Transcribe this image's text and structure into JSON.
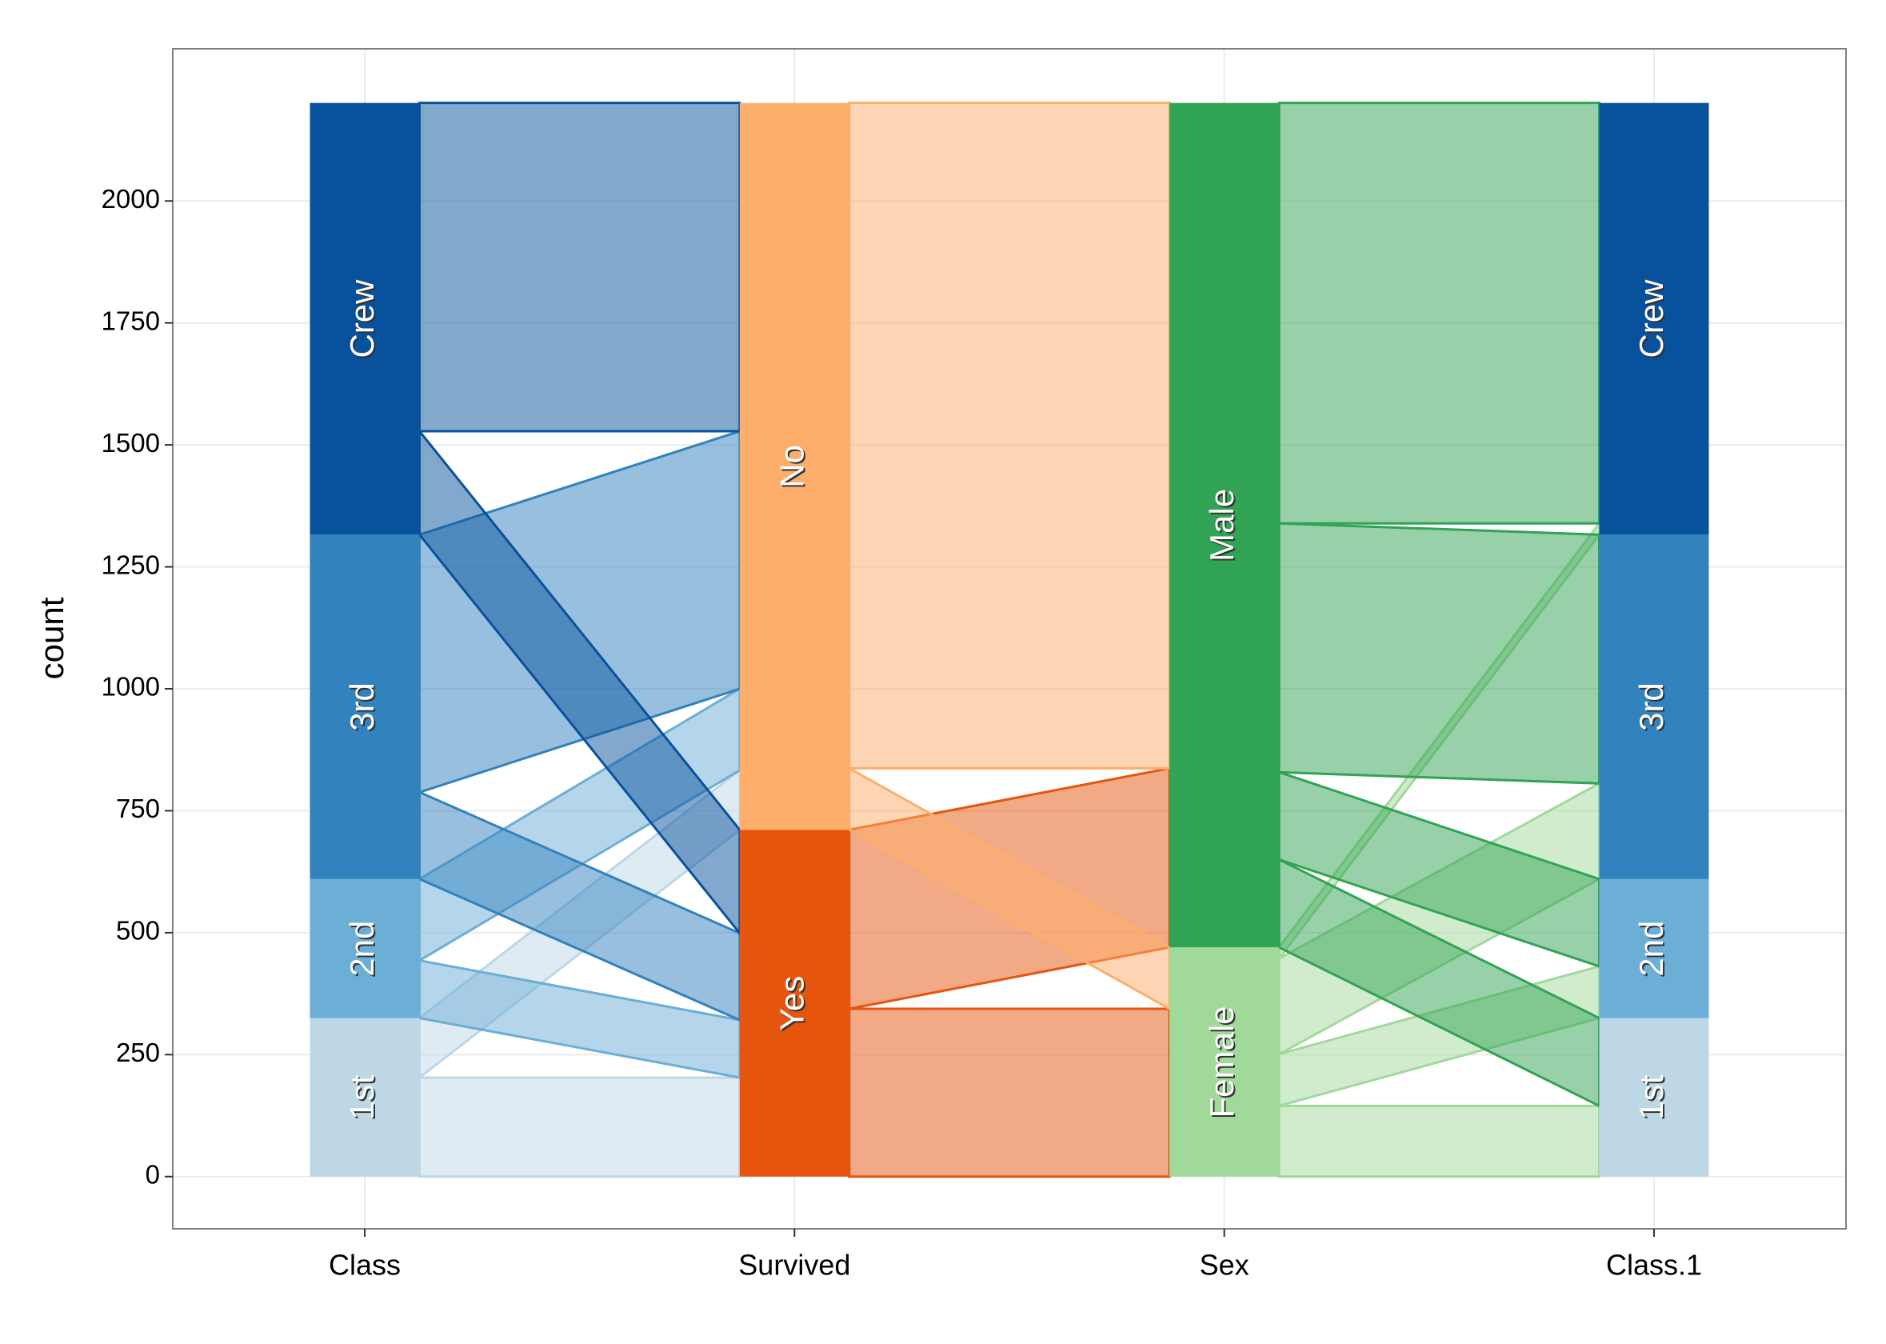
{
  "chart_data": {
    "type": "parallel_sets",
    "y_label": "count",
    "ylim": [
      -107,
      2312
    ],
    "yticks": [
      0,
      250,
      500,
      750,
      1000,
      1250,
      1500,
      1750,
      2000
    ],
    "grid": true,
    "axes": [
      {
        "name": "Class",
        "categories": [
          {
            "label": "1st",
            "value": 325,
            "color": "#bdd7e7"
          },
          {
            "label": "2nd",
            "value": 285,
            "color": "#6baed6"
          },
          {
            "label": "3rd",
            "value": 706,
            "color": "#3182bd"
          },
          {
            "label": "Crew",
            "value": 885,
            "color": "#08519c"
          }
        ]
      },
      {
        "name": "Survived",
        "categories": [
          {
            "label": "Yes",
            "value": 711,
            "color": "#e6550d"
          },
          {
            "label": "No",
            "value": 1490,
            "color": "#fdae6b"
          }
        ]
      },
      {
        "name": "Sex",
        "categories": [
          {
            "label": "Female",
            "value": 470,
            "color": "#a1d99b"
          },
          {
            "label": "Male",
            "value": 1731,
            "color": "#31a354"
          }
        ]
      },
      {
        "name": "Class.1",
        "categories": [
          {
            "label": "1st",
            "value": 325,
            "color": "#bdd7e7"
          },
          {
            "label": "2nd",
            "value": 285,
            "color": "#6baed6"
          },
          {
            "label": "3rd",
            "value": 706,
            "color": "#3182bd"
          },
          {
            "label": "Crew",
            "value": 885,
            "color": "#08519c"
          }
        ]
      }
    ],
    "flows": [
      {
        "values": [
          [
            203,
            122
          ],
          [
            118,
            167
          ],
          [
            178,
            528
          ],
          [
            212,
            673
          ]
        ]
      },
      {
        "values": [
          [
            344,
            367
          ],
          [
            126,
            1364
          ]
        ]
      },
      {
        "values": [
          [
            145,
            106,
            196,
            23
          ],
          [
            180,
            179,
            510,
            862
          ]
        ]
      }
    ]
  }
}
